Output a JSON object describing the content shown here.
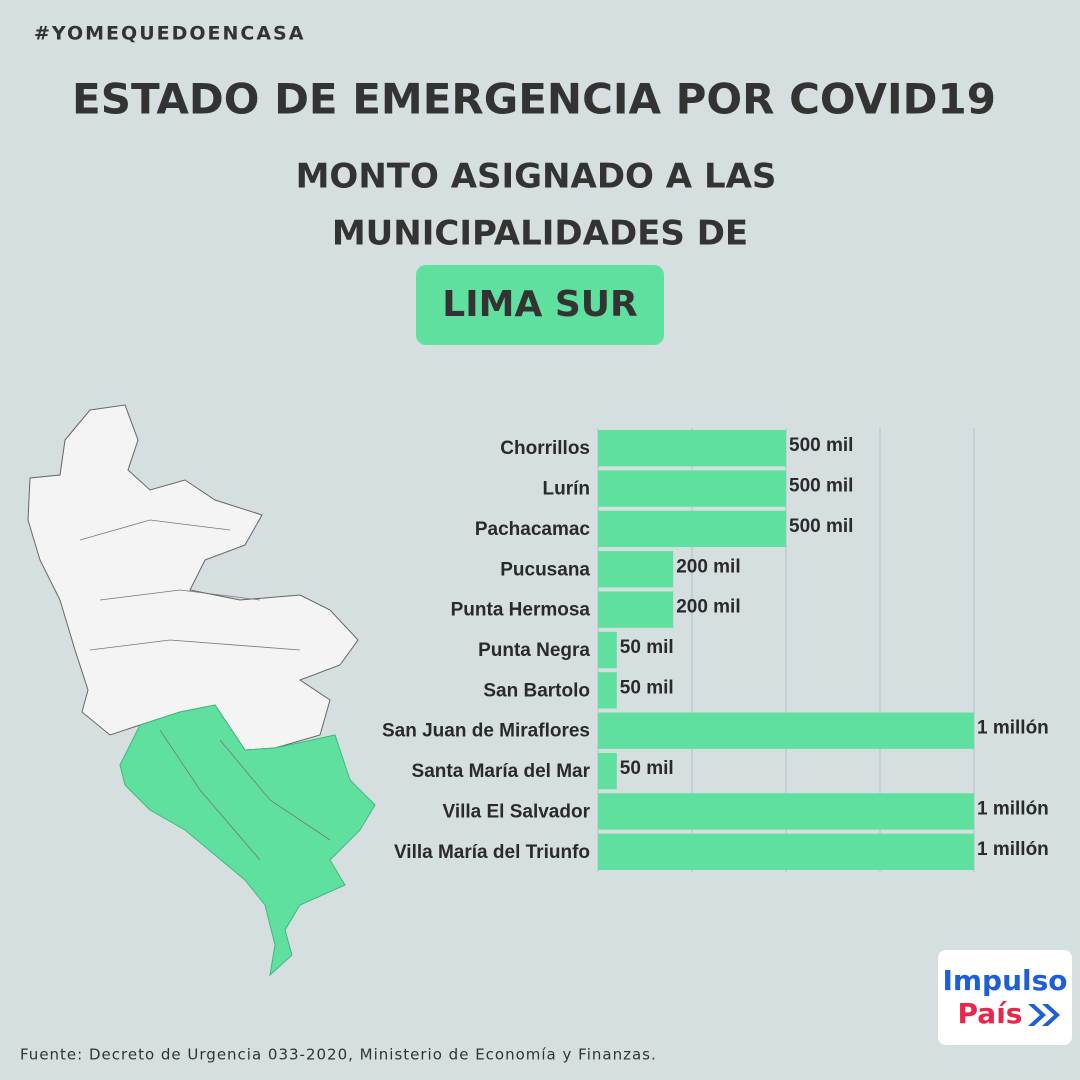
{
  "hashtag": "#YOMEQUEDOENCASA",
  "title": "ESTADO DE EMERGENCIA POR COVID19",
  "subtitle": [
    "MONTO ASIGNADO A LAS",
    "MUNICIPALIDADES DE"
  ],
  "highlight": "LIMA SUR",
  "chart_data": {
    "type": "bar",
    "orientation": "horizontal",
    "categories": [
      "Chorrillos",
      "Lurín",
      "Pachacamac",
      "Pucusana",
      "Punta Hermosa",
      "Punta Negra",
      "San Bartolo",
      "San Juan de Miraflores",
      "Santa María del Mar",
      "Villa El Salvador",
      "Villa María del Triunfo"
    ],
    "values": [
      500000,
      500000,
      500000,
      200000,
      200000,
      50000,
      50000,
      1000000,
      50000,
      1000000,
      1000000
    ],
    "value_labels": [
      "500 mil",
      "500 mil",
      "500 mil",
      "200 mil",
      "200 mil",
      "50 mil",
      "50 mil",
      "1 millón",
      "50 mil",
      "1 millón",
      "1 millón"
    ],
    "color": "#5fe09f",
    "xlim": [
      0,
      1000000
    ],
    "xticks": [
      0,
      250000,
      500000,
      750000,
      1000000
    ],
    "grid": true
  },
  "source": "Fuente: Decreto de Urgencia 033-2020, Ministerio de Economía y Finanzas.",
  "logo": {
    "line1": "Impulso",
    "line2": "País"
  }
}
